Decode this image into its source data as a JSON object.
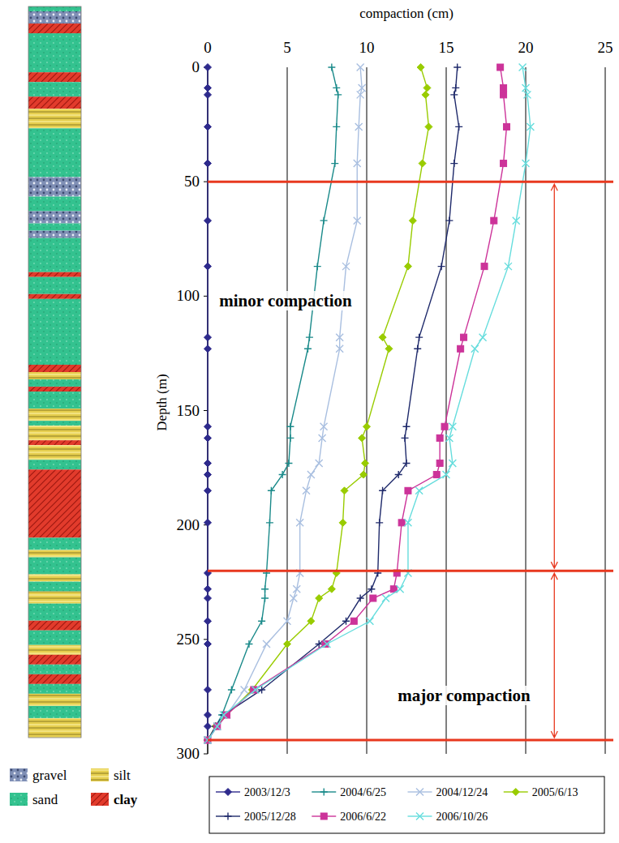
{
  "chart_data": {
    "type": "line",
    "orientation": "horizontal",
    "x_label": "compaction (cm)",
    "y_label": "Depth (m)",
    "xlim": [
      0,
      25
    ],
    "xticks": [
      0,
      5,
      10,
      15,
      20,
      25
    ],
    "ylim": [
      300,
      0
    ],
    "yticks": [
      0,
      50,
      100,
      150,
      200,
      250,
      300
    ],
    "grid": true,
    "legend": "bottom",
    "y": [
      0,
      9,
      12,
      26,
      42,
      67,
      87,
      118,
      123,
      157,
      162,
      173,
      178,
      185,
      199,
      221,
      228,
      232,
      242,
      252,
      272,
      283,
      288,
      294
    ],
    "series": [
      {
        "name": "2003/12/3",
        "color": "#2e2a8c",
        "marker": "diamond",
        "values": [
          0,
          0,
          0,
          0,
          0,
          0,
          0,
          0,
          0,
          0,
          0,
          0,
          0,
          0,
          0,
          0,
          0,
          0,
          0,
          0,
          0,
          0,
          0,
          0
        ]
      },
      {
        "name": "2004/6/25",
        "color": "#1a8a8a",
        "marker": "plus",
        "values": [
          7.8,
          8.1,
          8.2,
          8.1,
          8.0,
          7.3,
          6.9,
          6.4,
          6.3,
          5.2,
          5.2,
          5.1,
          4.7,
          4.0,
          3.9,
          3.7,
          3.6,
          3.6,
          3.4,
          2.6,
          1.5,
          0.9,
          0.5,
          0
        ]
      },
      {
        "name": "2004/12/24",
        "color": "#a9bfe0",
        "marker": "x",
        "values": [
          9.6,
          9.7,
          9.6,
          9.5,
          9.4,
          9.4,
          8.7,
          8.3,
          8.3,
          7.3,
          7.2,
          7.0,
          6.5,
          6.2,
          5.8,
          5.8,
          5.6,
          5.4,
          5.0,
          3.7,
          2.3,
          1.2,
          0.6,
          0
        ]
      },
      {
        "name": "2005/6/13",
        "color": "#99cc00",
        "marker": "diamond",
        "values": [
          13.4,
          13.8,
          13.7,
          13.9,
          13.5,
          12.9,
          12.6,
          11.0,
          11.4,
          10.0,
          9.7,
          9.9,
          9.8,
          8.6,
          8.5,
          8.1,
          7.8,
          7.0,
          6.5,
          5.0,
          2.8,
          1.2,
          0.5,
          0
        ]
      },
      {
        "name": "2005/12/28",
        "color": "#1f2a6b",
        "marker": "plus",
        "values": [
          15.7,
          15.6,
          15.5,
          15.8,
          15.5,
          15.2,
          14.7,
          13.3,
          13.2,
          12.5,
          12.4,
          12.5,
          12.0,
          11.0,
          10.8,
          10.7,
          10.3,
          9.6,
          8.7,
          7.0,
          3.4,
          1.0,
          0.5,
          0
        ]
      },
      {
        "name": "2006/6/22",
        "color": "#cc3399",
        "marker": "square",
        "values": [
          18.4,
          18.6,
          18.6,
          18.8,
          18.6,
          18.0,
          17.4,
          16.1,
          15.9,
          14.9,
          14.6,
          14.6,
          14.4,
          12.6,
          12.2,
          11.9,
          11.7,
          10.4,
          9.2,
          7.4,
          2.9,
          1.2,
          0.6,
          0
        ]
      },
      {
        "name": "2006/10/26",
        "color": "#66dddd",
        "marker": "x",
        "values": [
          19.8,
          20.0,
          20.1,
          20.3,
          20.0,
          19.4,
          18.9,
          17.3,
          16.8,
          15.4,
          15.2,
          15.4,
          15.0,
          13.3,
          12.6,
          12.6,
          12.1,
          11.2,
          10.2,
          7.5,
          3.0,
          1.0,
          0.6,
          0
        ]
      }
    ],
    "hlines": [
      50,
      220,
      294
    ],
    "annotations": [
      "minor compaction",
      "major compaction"
    ],
    "lithology": [
      {
        "name": "gravel",
        "color": "#7f8fb5"
      },
      {
        "name": "silt",
        "color": "#e6cf4f"
      },
      {
        "name": "sand",
        "color": "#33c28f"
      },
      {
        "name": "clay",
        "color": "#e23b2c"
      }
    ],
    "strata": [
      {
        "lithology": "sand",
        "top": 0,
        "bottom": 2
      },
      {
        "lithology": "gravel",
        "top": 2,
        "bottom": 7
      },
      {
        "lithology": "clay",
        "top": 7,
        "bottom": 11
      },
      {
        "lithology": "sand",
        "top": 11,
        "bottom": 27
      },
      {
        "lithology": "clay",
        "top": 27,
        "bottom": 31
      },
      {
        "lithology": "sand",
        "top": 31,
        "bottom": 37
      },
      {
        "lithology": "clay",
        "top": 37,
        "bottom": 42
      },
      {
        "lithology": "silt",
        "top": 42,
        "bottom": 50
      },
      {
        "lithology": "sand",
        "top": 50,
        "bottom": 70
      },
      {
        "lithology": "gravel",
        "top": 70,
        "bottom": 78
      },
      {
        "lithology": "sand",
        "top": 78,
        "bottom": 84
      },
      {
        "lithology": "gravel",
        "top": 84,
        "bottom": 89
      },
      {
        "lithology": "sand",
        "top": 89,
        "bottom": 92
      },
      {
        "lithology": "gravel",
        "top": 92,
        "bottom": 95
      },
      {
        "lithology": "sand",
        "top": 95,
        "bottom": 109
      },
      {
        "lithology": "clay",
        "top": 109,
        "bottom": 111
      },
      {
        "lithology": "sand",
        "top": 111,
        "bottom": 118
      },
      {
        "lithology": "clay",
        "top": 118,
        "bottom": 120
      },
      {
        "lithology": "sand",
        "top": 120,
        "bottom": 147
      },
      {
        "lithology": "clay",
        "top": 147,
        "bottom": 150
      },
      {
        "lithology": "silt",
        "top": 150,
        "bottom": 153
      },
      {
        "lithology": "sand",
        "top": 153,
        "bottom": 156
      },
      {
        "lithology": "clay",
        "top": 156,
        "bottom": 158
      },
      {
        "lithology": "sand",
        "top": 158,
        "bottom": 165
      },
      {
        "lithology": "silt",
        "top": 165,
        "bottom": 170
      },
      {
        "lithology": "sand",
        "top": 170,
        "bottom": 172
      },
      {
        "lithology": "silt",
        "top": 172,
        "bottom": 178
      },
      {
        "lithology": "clay",
        "top": 178,
        "bottom": 180
      },
      {
        "lithology": "silt",
        "top": 180,
        "bottom": 186
      },
      {
        "lithology": "sand",
        "top": 186,
        "bottom": 190
      },
      {
        "lithology": "clay",
        "top": 190,
        "bottom": 218
      },
      {
        "lithology": "sand",
        "top": 218,
        "bottom": 223
      },
      {
        "lithology": "silt",
        "top": 223,
        "bottom": 226
      },
      {
        "lithology": "sand",
        "top": 226,
        "bottom": 233
      },
      {
        "lithology": "silt",
        "top": 233,
        "bottom": 236
      },
      {
        "lithology": "sand",
        "top": 236,
        "bottom": 240
      },
      {
        "lithology": "silt",
        "top": 240,
        "bottom": 245
      },
      {
        "lithology": "sand",
        "top": 245,
        "bottom": 252
      },
      {
        "lithology": "clay",
        "top": 252,
        "bottom": 256
      },
      {
        "lithology": "sand",
        "top": 256,
        "bottom": 262
      },
      {
        "lithology": "silt",
        "top": 262,
        "bottom": 266
      },
      {
        "lithology": "clay",
        "top": 266,
        "bottom": 270
      },
      {
        "lithology": "sand",
        "top": 270,
        "bottom": 274
      },
      {
        "lithology": "clay",
        "top": 274,
        "bottom": 278
      },
      {
        "lithology": "sand",
        "top": 278,
        "bottom": 282
      },
      {
        "lithology": "silt",
        "top": 282,
        "bottom": 287
      },
      {
        "lithology": "sand",
        "top": 287,
        "bottom": 292
      },
      {
        "lithology": "silt",
        "top": 292,
        "bottom": 300
      }
    ]
  }
}
